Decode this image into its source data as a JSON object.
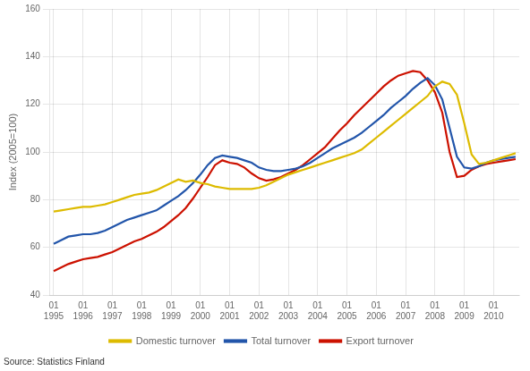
{
  "chart_data": {
    "type": "line",
    "ylabel": "Index (2005=100)",
    "annotations": [
      "Source: Statistics Finland"
    ],
    "categories": [
      "01\n1995",
      null,
      null,
      null,
      "01\n1996",
      null,
      null,
      null,
      "01\n1997",
      null,
      null,
      null,
      "01\n1998",
      null,
      null,
      null,
      "01\n1999",
      null,
      null,
      null,
      "01\n2000",
      null,
      null,
      null,
      "01\n2001",
      null,
      null,
      null,
      "01\n2002",
      null,
      null,
      null,
      "01\n2003",
      null,
      null,
      null,
      "01\n2004",
      null,
      null,
      null,
      "01\n2005",
      null,
      null,
      null,
      "01\n2006",
      null,
      null,
      null,
      "01\n2007",
      null,
      null,
      null,
      "01\n2008",
      null,
      null,
      null,
      "01\n2009",
      null,
      null,
      null,
      "01\n2010",
      null,
      null,
      null
    ],
    "series": [
      {
        "name": "Domestic turnover",
        "color": "#ddbb00",
        "values": [
          75.0,
          75.5,
          76.0,
          76.5,
          77.0,
          77.0,
          77.5,
          78.0,
          79.0,
          80.0,
          81.0,
          82.0,
          82.5,
          83.0,
          84.0,
          85.5,
          87.0,
          88.5,
          87.5,
          88.0,
          87.0,
          86.5,
          85.5,
          85.0,
          84.5,
          84.5,
          84.5,
          84.5,
          85.0,
          86.0,
          87.5,
          89.0,
          90.5,
          91.5,
          92.5,
          93.5,
          94.5,
          95.5,
          96.5,
          97.5,
          98.5,
          99.5,
          101.0,
          103.5,
          106.0,
          108.5,
          111.0,
          113.5,
          116.0,
          118.5,
          121.0,
          123.5,
          127.5,
          129.5,
          128.5,
          124.0,
          112.0,
          99.0,
          95.0,
          95.5,
          96.5,
          97.5,
          98.5,
          99.5
        ]
      },
      {
        "name": "Total turnover",
        "color": "#2255aa",
        "values": [
          61.5,
          63.0,
          64.5,
          65.0,
          65.5,
          65.5,
          66.0,
          67.0,
          68.5,
          70.0,
          71.5,
          72.5,
          73.5,
          74.5,
          75.5,
          77.5,
          79.5,
          81.5,
          84.0,
          87.0,
          90.5,
          94.5,
          97.5,
          98.5,
          98.0,
          97.5,
          96.5,
          95.5,
          93.5,
          92.5,
          92.0,
          92.0,
          92.5,
          93.0,
          94.0,
          95.5,
          97.5,
          99.5,
          101.5,
          103.0,
          104.5,
          106.0,
          108.0,
          110.5,
          113.0,
          115.5,
          118.5,
          121.0,
          123.5,
          126.5,
          129.0,
          131.0,
          128.0,
          122.0,
          110.0,
          98.0,
          93.5,
          93.0,
          94.0,
          95.5,
          96.5,
          97.0,
          97.5,
          98.0
        ]
      },
      {
        "name": "Export turnover",
        "color": "#cc1100",
        "values": [
          50.0,
          51.5,
          53.0,
          54.0,
          55.0,
          55.5,
          56.0,
          57.0,
          58.0,
          59.5,
          61.0,
          62.5,
          63.5,
          65.0,
          66.5,
          68.5,
          71.0,
          73.5,
          76.5,
          80.5,
          85.0,
          89.5,
          94.5,
          96.5,
          95.5,
          95.0,
          93.5,
          91.0,
          89.0,
          88.0,
          88.5,
          89.5,
          91.0,
          92.5,
          94.5,
          97.0,
          99.5,
          102.0,
          105.5,
          109.0,
          112.0,
          115.5,
          118.5,
          121.5,
          124.5,
          127.5,
          130.0,
          132.0,
          133.0,
          134.0,
          133.5,
          130.0,
          125.0,
          116.5,
          100.0,
          89.5,
          90.0,
          92.5,
          94.0,
          95.0,
          95.5,
          96.0,
          96.5,
          97.0
        ]
      }
    ],
    "ylim": [
      40,
      160
    ],
    "yticks": [
      40,
      60,
      80,
      100,
      120,
      140,
      160
    ],
    "grid": true,
    "legend": "bottom"
  }
}
